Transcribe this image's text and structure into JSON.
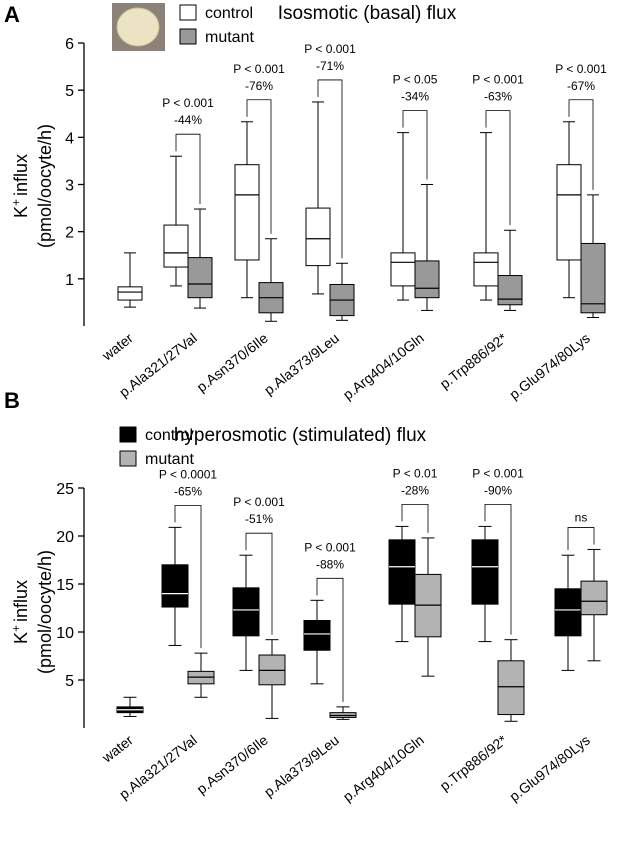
{
  "chart_data": [
    {
      "type": "box",
      "panel": "A",
      "title": "Isosmotic (basal) flux",
      "ylabel": {
        "main": "K",
        "sup": "+",
        "rest": "influx",
        "line2": "(pmol/oocyte/h)"
      },
      "categories": [
        "water",
        "p.Ala321/27Val",
        "p.Asn370/6Ile",
        "p.Ala373/9Leu",
        "p.Arg404/10Gln",
        "p.Trp886/92*",
        "p.Glu974/80Lys"
      ],
      "ylim": [
        0,
        6
      ],
      "yticks": [
        1,
        2,
        3,
        4,
        5,
        6
      ],
      "series": [
        {
          "name": "control",
          "color": "#ffffff",
          "median_color": "#000000",
          "values": [
            {
              "whislo": 0.4,
              "q1": 0.55,
              "med": 0.72,
              "q3": 0.83,
              "whishi": 1.55
            },
            {
              "whislo": 0.85,
              "q1": 1.25,
              "med": 1.55,
              "q3": 2.14,
              "whishi": 3.6
            },
            {
              "whislo": 0.6,
              "q1": 1.4,
              "med": 2.78,
              "q3": 3.42,
              "whishi": 4.33
            },
            {
              "whislo": 0.68,
              "q1": 1.28,
              "med": 1.85,
              "q3": 2.5,
              "whishi": 4.75
            },
            {
              "whislo": 0.55,
              "q1": 0.85,
              "med": 1.35,
              "q3": 1.55,
              "whishi": 4.1
            },
            {
              "whislo": 0.55,
              "q1": 0.85,
              "med": 1.35,
              "q3": 1.55,
              "whishi": 4.1
            },
            {
              "whislo": 0.6,
              "q1": 1.4,
              "med": 2.78,
              "q3": 3.42,
              "whishi": 4.33
            }
          ]
        },
        {
          "name": "mutant",
          "color": "#999999",
          "median_color": "#000000",
          "values": [
            null,
            {
              "whislo": 0.38,
              "q1": 0.6,
              "med": 0.89,
              "q3": 1.45,
              "whishi": 2.48
            },
            {
              "whislo": 0.1,
              "q1": 0.28,
              "med": 0.6,
              "q3": 0.92,
              "whishi": 1.85
            },
            {
              "whislo": 0.12,
              "q1": 0.22,
              "med": 0.55,
              "q3": 0.88,
              "whishi": 1.33
            },
            {
              "whislo": 0.33,
              "q1": 0.6,
              "med": 0.8,
              "q3": 1.38,
              "whishi": 3.0
            },
            {
              "whislo": 0.33,
              "q1": 0.45,
              "med": 0.57,
              "q3": 1.07,
              "whishi": 2.03
            },
            {
              "whislo": 0.18,
              "q1": 0.28,
              "med": 0.47,
              "q3": 1.75,
              "whishi": 2.78
            }
          ]
        }
      ],
      "annotations": [
        null,
        {
          "p": "P < 0.001",
          "change": "-44%"
        },
        {
          "p": "P < 0.001",
          "change": "-76%"
        },
        {
          "p": "P < 0.001",
          "change": "-71%"
        },
        {
          "p": "P < 0.05",
          "change": "-34%"
        },
        {
          "p": "P < 0.001",
          "change": "-63%"
        },
        {
          "p": "P < 0.001",
          "change": "-67%"
        }
      ]
    },
    {
      "type": "box",
      "panel": "B",
      "title": "hyperosmotic (stimulated) flux",
      "ylabel": {
        "main": "K",
        "sup": "+",
        "rest": "influx",
        "line2": "(pmol/oocyte/h)"
      },
      "categories": [
        "water",
        "p.Ala321/27Val",
        "p.Asn370/6Ile",
        "p.Ala373/9Leu",
        "p.Arg404/10Gln",
        "p.Trp886/92*",
        "p.Glu974/80Lys"
      ],
      "ylim": [
        0,
        25
      ],
      "yticks": [
        5,
        10,
        15,
        20,
        25
      ],
      "series": [
        {
          "name": "control",
          "color": "#000000",
          "median_color": "#ffffff",
          "values": [
            {
              "whislo": 1.2,
              "q1": 1.6,
              "med": 1.9,
              "q3": 2.2,
              "whishi": 3.2
            },
            {
              "whislo": 8.6,
              "q1": 12.6,
              "med": 14.0,
              "q3": 17.0,
              "whishi": 20.9
            },
            {
              "whislo": 6.0,
              "q1": 9.6,
              "med": 12.3,
              "q3": 14.6,
              "whishi": 18.0
            },
            {
              "whislo": 4.6,
              "q1": 8.1,
              "med": 9.8,
              "q3": 11.2,
              "whishi": 13.3
            },
            {
              "whislo": 9.0,
              "q1": 12.9,
              "med": 16.8,
              "q3": 19.6,
              "whishi": 21.0
            },
            {
              "whislo": 9.0,
              "q1": 12.9,
              "med": 16.8,
              "q3": 19.6,
              "whishi": 21.0
            },
            {
              "whislo": 6.0,
              "q1": 9.6,
              "med": 12.3,
              "q3": 14.5,
              "whishi": 18.0
            }
          ]
        },
        {
          "name": "mutant",
          "color": "#b3b3b3",
          "median_color": "#000000",
          "values": [
            null,
            {
              "whislo": 3.2,
              "q1": 4.6,
              "med": 5.3,
              "q3": 5.9,
              "whishi": 7.8
            },
            {
              "whislo": 1.0,
              "q1": 4.5,
              "med": 6.0,
              "q3": 7.6,
              "whishi": 9.2
            },
            {
              "whislo": 0.9,
              "q1": 1.1,
              "med": 1.3,
              "q3": 1.6,
              "whishi": 2.2
            },
            {
              "whislo": 5.4,
              "q1": 9.5,
              "med": 12.8,
              "q3": 16.0,
              "whishi": 19.8
            },
            {
              "whislo": 0.7,
              "q1": 1.4,
              "med": 4.3,
              "q3": 7.0,
              "whishi": 9.2
            },
            {
              "whislo": 7.0,
              "q1": 11.8,
              "med": 13.2,
              "q3": 15.3,
              "whishi": 18.6
            }
          ]
        }
      ],
      "annotations": [
        null,
        {
          "p": "P < 0.0001",
          "change": "-65%"
        },
        {
          "p": "P < 0.001",
          "change": "-51%"
        },
        {
          "p": "P < 0.001",
          "change": "-88%"
        },
        {
          "p": "P < 0.01",
          "change": "-28%"
        },
        {
          "p": "P < 0.001",
          "change": "-90%"
        },
        {
          "p": "ns"
        }
      ]
    }
  ]
}
